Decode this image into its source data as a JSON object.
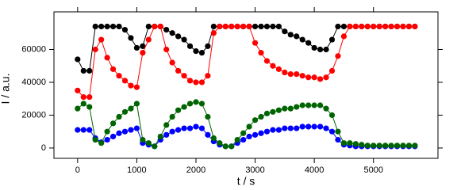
{
  "chart_data": {
    "type": "scatter",
    "xlabel": "t / s",
    "ylabel": "I / a.u.",
    "x": [
      0,
      100,
      200,
      300,
      400,
      500,
      600,
      700,
      800,
      900,
      1000,
      1100,
      1200,
      1300,
      1400,
      1500,
      1600,
      1700,
      1800,
      1900,
      2000,
      2100,
      2200,
      2300,
      2400,
      2500,
      2600,
      2700,
      2800,
      2900,
      3000,
      3100,
      3200,
      3300,
      3400,
      3500,
      3600,
      3700,
      3800,
      3900,
      4000,
      4100,
      4200,
      4300,
      4400,
      4500,
      4600,
      4700,
      4800,
      4900,
      5000,
      5100,
      5200,
      5300,
      5400,
      5500,
      5600,
      5700
    ],
    "series": [
      {
        "color": "#000000",
        "values": [
          54000,
          47000,
          47000,
          74000,
          74000,
          74000,
          74000,
          74000,
          72000,
          67000,
          61000,
          62000,
          74000,
          74000,
          74000,
          72000,
          70000,
          68000,
          66000,
          62000,
          59000,
          58000,
          62000,
          74000,
          74000,
          74000,
          74000,
          74000,
          74000,
          74000,
          74000,
          74000,
          74000,
          74000,
          74000,
          71000,
          69000,
          68000,
          66000,
          64000,
          61000,
          60000,
          60000,
          66000,
          74000,
          74000,
          74000,
          74000,
          74000,
          74000,
          74000,
          74000,
          74000,
          74000,
          74000,
          74000,
          74000,
          74000
        ]
      },
      {
        "color": "#ff0000",
        "values": [
          35000,
          31000,
          31000,
          60000,
          66000,
          55000,
          48000,
          44000,
          41000,
          38000,
          37000,
          58000,
          66000,
          74000,
          74000,
          60000,
          52000,
          47000,
          44000,
          41000,
          40000,
          40000,
          44000,
          70000,
          74000,
          74000,
          74000,
          74000,
          74000,
          74000,
          64000,
          58000,
          53000,
          50000,
          48000,
          46000,
          45000,
          45000,
          44000,
          43000,
          43000,
          42000,
          43000,
          47000,
          56000,
          68000,
          74000,
          74000,
          74000,
          74000,
          74000,
          74000,
          74000,
          74000,
          74000,
          74000,
          74000,
          74000
        ]
      },
      {
        "color": "#0000ff",
        "values": [
          11000,
          11000,
          11000,
          6000,
          3500,
          5000,
          7000,
          9000,
          10000,
          11000,
          12000,
          3000,
          2000,
          1000,
          5000,
          8000,
          10000,
          11000,
          12000,
          12000,
          13000,
          12000,
          8000,
          4000,
          2000,
          1000,
          1000,
          3000,
          5000,
          7000,
          8000,
          9000,
          10000,
          11000,
          11000,
          12000,
          12000,
          12000,
          13000,
          13000,
          13000,
          13000,
          12000,
          10000,
          5000,
          2000,
          1500,
          1000,
          1000,
          1000,
          1000,
          1000,
          1000,
          1000,
          1000,
          1000,
          1000,
          1000
        ]
      },
      {
        "color": "#006400",
        "values": [
          24000,
          27000,
          25000,
          5000,
          3000,
          10000,
          15000,
          19000,
          22000,
          24000,
          27000,
          5000,
          3000,
          1000,
          7000,
          14000,
          19000,
          23000,
          25000,
          27000,
          28000,
          27000,
          19000,
          6000,
          3000,
          1000,
          1000,
          5000,
          9000,
          13000,
          17000,
          19000,
          21000,
          22000,
          23000,
          24000,
          24000,
          25000,
          26000,
          26000,
          26000,
          26000,
          24000,
          20000,
          10000,
          3000,
          3000,
          2500,
          2000,
          1500,
          1500,
          1500,
          1500,
          1500,
          1500,
          1500,
          1500,
          1500
        ]
      }
    ],
    "xlim": [
      -400,
      6090
    ],
    "ylim": [
      -6300,
      82900
    ],
    "xticks": [
      0,
      1000,
      2000,
      3000,
      4000,
      5000
    ],
    "yticks": [
      0,
      20000,
      40000,
      60000
    ]
  }
}
